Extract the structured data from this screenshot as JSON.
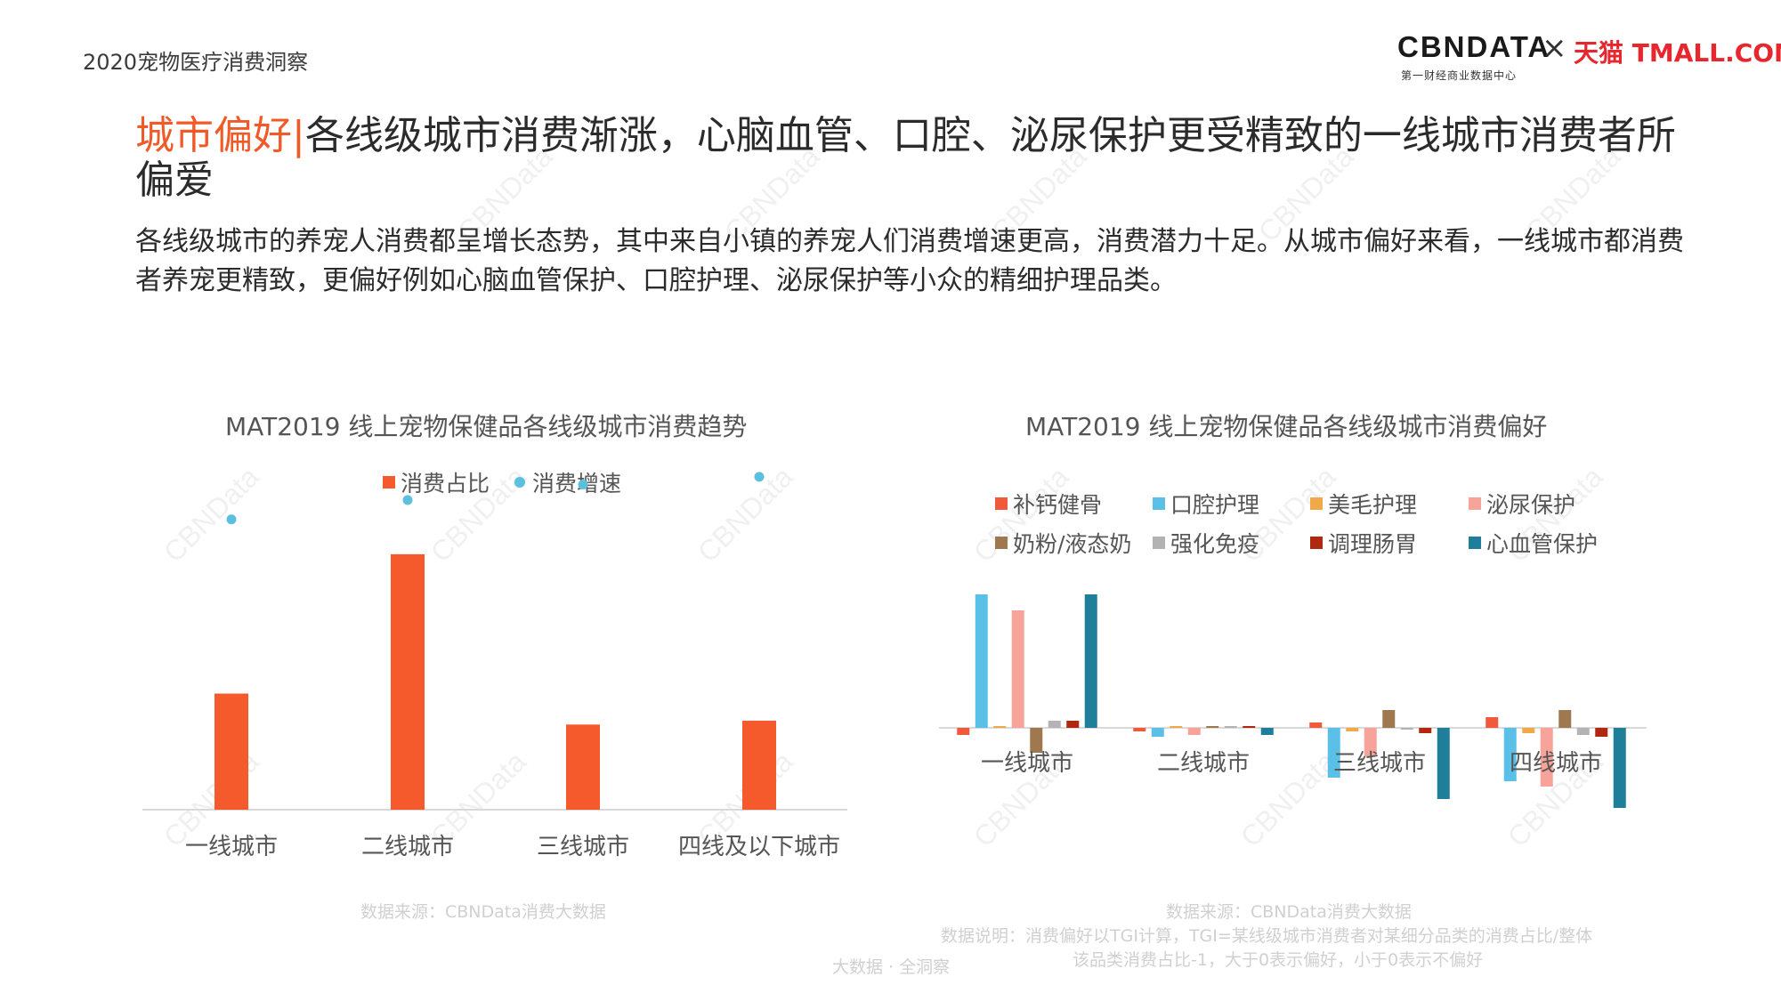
{
  "header": {
    "report_title": "2020宠物医疗消费洞察",
    "logo_cbndata": "CBNDATA",
    "logo_cbndata_sub": "第一财经商业数据中心",
    "logo_separator": "×",
    "logo_tmall": "天猫 TMALL.COM"
  },
  "headline": {
    "accent": "城市偏好",
    "divider": "|",
    "text": "各线级城市消费渐涨，心脑血管、口腔、泌尿保护更受精致的一线城市消费者所偏爱"
  },
  "description": "各线级城市的养宠人消费都呈增长态势，其中来自小镇的养宠人们消费增速更高，消费潜力十足。从城市偏好来看，一线城市都消费者养宠更精致，更偏好例如心脑血管保护、口腔护理、泌尿保护等小众的精细护理品类。",
  "watermark": "CBNData",
  "colors": {
    "share_bar": "#f55a2c",
    "growth_dot": "#5bc0de",
    "calcium": "#f05a3a",
    "oral": "#5bc0e8",
    "grooming": "#f0a848",
    "urinary": "#f8a39a",
    "milk": "#a07850",
    "immunity": "#b3b3b3",
    "gut": "#b02810",
    "cardio": "#1f7f9a"
  },
  "chart_data": [
    {
      "type": "bar",
      "title": "MAT2019 线上宠物保健品各线级城市消费趋势",
      "categories": [
        "一线城市",
        "二线城市",
        "三线城市",
        "四线及以下城市"
      ],
      "series": [
        {
          "name": "消费占比",
          "kind": "bar",
          "values": [
            0.3,
            0.66,
            0.22,
            0.23
          ]
        },
        {
          "name": "消费增速",
          "kind": "dot",
          "values": [
            0.75,
            0.8,
            0.84,
            0.86
          ]
        }
      ],
      "legend_position": "top-center",
      "grid": false,
      "ylim": [
        0,
        1
      ],
      "source": "数据来源：CBNData消费大数据"
    },
    {
      "type": "bar",
      "title": "MAT2019 线上宠物保健品各线级城市消费偏好",
      "categories": [
        "一线城市",
        "二线城市",
        "三线城市",
        "四线城市"
      ],
      "series": [
        {
          "name": "补钙健骨",
          "color_key": "calcium",
          "values": [
            -0.04,
            -0.02,
            0.03,
            0.06
          ]
        },
        {
          "name": "口腔护理",
          "color_key": "oral",
          "values": [
            0.75,
            -0.05,
            -0.28,
            -0.3
          ]
        },
        {
          "name": "美毛护理",
          "color_key": "grooming",
          "values": [
            0.01,
            0.0,
            -0.02,
            -0.03
          ]
        },
        {
          "name": "泌尿保护",
          "color_key": "urinary",
          "values": [
            0.66,
            -0.04,
            -0.16,
            -0.33
          ]
        },
        {
          "name": "奶粉/液态奶",
          "color_key": "milk",
          "values": [
            -0.14,
            0.0,
            0.1,
            0.1
          ]
        },
        {
          "name": "强化免疫",
          "color_key": "immunity",
          "values": [
            0.04,
            0.01,
            -0.01,
            -0.04
          ]
        },
        {
          "name": "调理肠胃",
          "color_key": "gut",
          "values": [
            0.04,
            0.0,
            -0.03,
            -0.05
          ]
        },
        {
          "name": "心血管保护",
          "color_key": "cardio",
          "values": [
            0.75,
            -0.04,
            -0.4,
            -0.45
          ]
        }
      ],
      "legend_position": "top",
      "grid": false,
      "ylim": [
        -0.6,
        0.9
      ],
      "source": "数据来源：CBNData消费大数据",
      "note_line1": "数据说明：消费偏好以TGI计算，TGI=某线级城市消费者对某细分品类的消费占比/整体",
      "note_line2": "该品类消费占比-1，大于0表示偏好，小于0表示不偏好"
    }
  ],
  "footer": {
    "tag": "大数据 · 全洞察"
  }
}
